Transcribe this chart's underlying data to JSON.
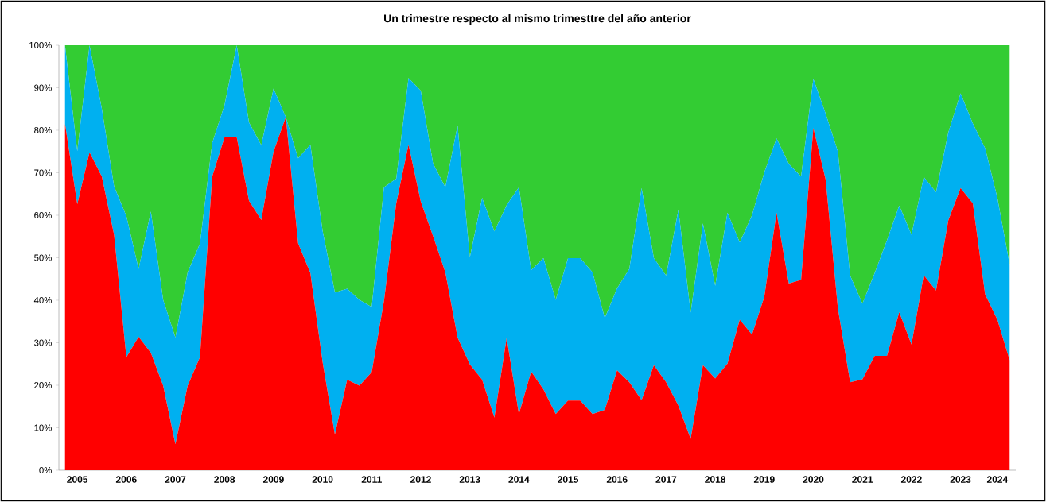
{
  "chart_data": {
    "type": "area",
    "stacked": true,
    "title": "Un trimestre respecto al mismo trimesttre del año anterior",
    "categories": [
      null,
      "2005",
      null,
      null,
      null,
      "2006",
      null,
      null,
      null,
      "2007",
      null,
      null,
      null,
      "2008",
      null,
      null,
      null,
      "2009",
      null,
      null,
      null,
      "2010",
      null,
      null,
      null,
      "2011",
      null,
      null,
      null,
      "2012",
      null,
      null,
      null,
      "2013",
      null,
      null,
      null,
      "2014",
      null,
      null,
      null,
      "2015",
      null,
      null,
      null,
      "2016",
      null,
      null,
      null,
      "2017",
      null,
      null,
      null,
      "2018",
      null,
      null,
      null,
      "2019",
      null,
      null,
      null,
      "2020",
      null,
      null,
      null,
      "2021",
      null,
      null,
      null,
      "2022",
      null,
      null,
      null,
      "2023",
      null,
      null,
      "2024",
      null
    ],
    "series": [
      {
        "color": "#ff0000",
        "values": [
          81.5,
          62.6,
          74.8,
          69.1,
          55.4,
          26.6,
          31.4,
          27.6,
          19.9,
          6.1,
          19.9,
          26.6,
          69.1,
          78.3,
          78.3,
          63.4,
          58.9,
          75.0,
          83.1,
          53.4,
          46.4,
          25.4,
          8.4,
          21.3,
          19.9,
          23.1,
          39.8,
          62.8,
          76.6,
          63.2,
          55.1,
          46.6,
          31.2,
          24.9,
          21.3,
          12.4,
          31.1,
          13.2,
          23.2,
          19.0,
          13.2,
          16.4,
          16.4,
          13.2,
          14.2,
          23.5,
          20.7,
          16.5,
          24.7,
          20.7,
          15.2,
          7.4,
          24.7,
          21.6,
          25.1,
          35.4,
          31.9,
          40.8,
          60.6,
          43.9,
          44.8,
          80.5,
          68.4,
          38.1,
          20.7,
          21.4,
          26.9,
          26.9,
          37.2,
          29.6,
          45.9,
          42.3,
          58.8,
          66.4,
          62.8,
          41.4,
          35.4,
          25.9
        ]
      },
      {
        "color": "#00b0f0",
        "values": [
          18.5,
          12.5,
          25.2,
          16.0,
          11.4,
          33.2,
          16.0,
          33.3,
          20.2,
          25.1,
          26.7,
          26.7,
          7.9,
          7.6,
          21.7,
          18.4,
          17.6,
          14.8,
          0,
          20.0,
          30.2,
          30.9,
          33.4,
          21.4,
          20.2,
          15.3,
          26.8,
          5.8,
          15.7,
          26.1,
          17.1,
          20.0,
          49.9,
          25.2,
          42.8,
          43.8,
          31.3,
          53.4,
          23.9,
          30.9,
          26.9,
          33.5,
          33.5,
          33.4,
          21.6,
          19.3,
          26.7,
          49.9,
          25.2,
          25.1,
          46.1,
          29.7,
          33.4,
          21.8,
          35.5,
          18.2,
          28.1,
          29.3,
          17.5,
          28.2,
          24.3,
          11.6,
          15.5,
          36.9,
          25.1,
          17.8,
          19.5,
          27.2,
          25.1,
          25.8,
          23.1,
          23.1,
          20.7,
          22.3,
          18.8,
          34.4,
          28.7,
          22.5
        ]
      },
      {
        "color": "#33cc33",
        "values": [
          0,
          24.9,
          0,
          14.9,
          33.2,
          40.2,
          52.6,
          39.1,
          59.9,
          68.8,
          53.4,
          46.7,
          23.0,
          14.1,
          0,
          18.2,
          23.5,
          10.2,
          16.9,
          26.6,
          23.4,
          43.7,
          58.2,
          57.3,
          59.9,
          61.6,
          33.4,
          31.4,
          7.7,
          10.7,
          27.8,
          33.4,
          18.9,
          49.9,
          35.9,
          43.8,
          37.6,
          33.4,
          52.9,
          50.1,
          59.9,
          50.1,
          50.1,
          53.4,
          64.2,
          57.2,
          52.6,
          33.6,
          50.1,
          54.2,
          38.7,
          62.9,
          41.9,
          56.6,
          39.4,
          46.4,
          40.0,
          29.9,
          21.9,
          27.9,
          30.9,
          7.9,
          16.1,
          25.0,
          54.2,
          60.8,
          53.6,
          45.9,
          37.7,
          44.6,
          31.0,
          34.6,
          20.5,
          11.3,
          18.4,
          24.2,
          35.9,
          51.6
        ]
      }
    ],
    "ylim": [
      0,
      100
    ],
    "yticks": [
      {
        "value": 0,
        "label": "0%"
      },
      {
        "value": 10,
        "label": "10%"
      },
      {
        "value": 20,
        "label": "20%"
      },
      {
        "value": 30,
        "label": "30%"
      },
      {
        "value": 40,
        "label": "40%"
      },
      {
        "value": 50,
        "label": "50%"
      },
      {
        "value": 60,
        "label": "60%"
      },
      {
        "value": 70,
        "label": "70%"
      },
      {
        "value": 80,
        "label": "80%"
      },
      {
        "value": 90,
        "label": "90%"
      },
      {
        "value": 100,
        "label": "100%"
      }
    ]
  }
}
